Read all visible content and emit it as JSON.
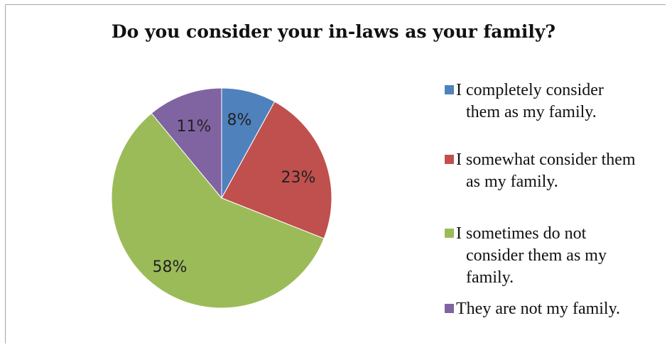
{
  "chart_data": {
    "type": "pie",
    "title": "Do you consider your in-laws as your family?",
    "slices": [
      {
        "label": "I completely consider them as my family.",
        "value": 8,
        "display": "8%",
        "color": "#4f81bd"
      },
      {
        "label": "I somewhat consider them as my family.",
        "value": 23,
        "display": "23%",
        "color": "#c0504d"
      },
      {
        "label": "I sometimes do not consider them as my family.",
        "value": 58,
        "display": "58%",
        "color": "#9bbb59"
      },
      {
        "label": "They are not my family.",
        "value": 11,
        "display": "11%",
        "color": "#8064a2"
      }
    ],
    "start_angle": "12 o'clock",
    "direction": "clockwise",
    "legend_position": "right"
  },
  "legend_lines": [
    [
      "I completely consider",
      "them as my family."
    ],
    [
      "I somewhat consider them",
      "as my family."
    ],
    [
      "I sometimes do not",
      "consider them as my",
      "family."
    ],
    [
      "They are not my family."
    ]
  ]
}
